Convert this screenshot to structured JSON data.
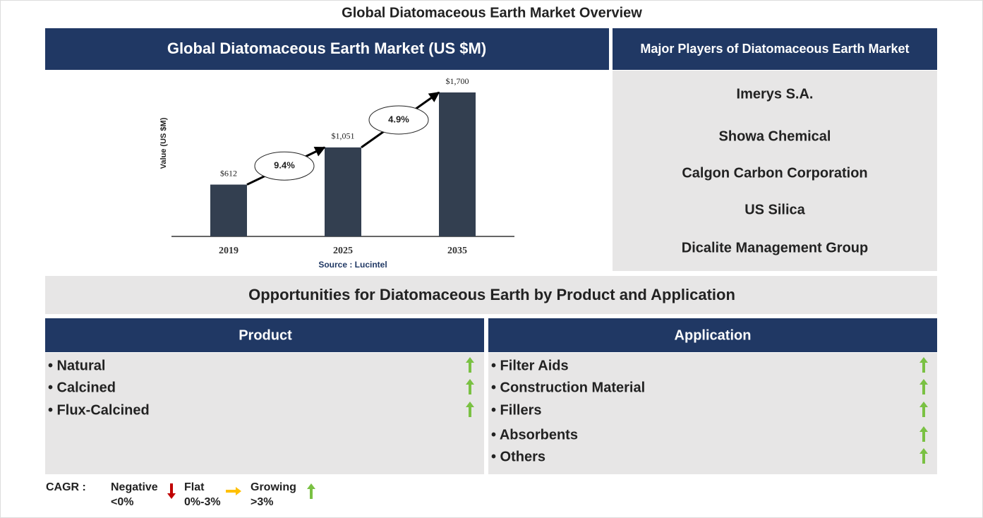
{
  "title": "Global Diatomaceous Earth Market Overview",
  "chart_data": {
    "type": "bar",
    "title": "Global Diatomaceous Earth Market (US $M)",
    "y_label": "Value (US $M)",
    "categories": [
      "2019",
      "2025",
      "2035"
    ],
    "values": [
      612,
      1051,
      1700
    ],
    "value_labels": [
      "$612",
      "$1,051",
      "$1,700"
    ],
    "annotations": [
      "9.4%",
      "4.9%"
    ],
    "source": "Source : Lucintel",
    "color": "#333f50",
    "ylim": [
      0,
      1800
    ]
  },
  "players": {
    "title": "Major Players of Diatomaceous Earth Market",
    "items": [
      "Imerys S.A.",
      "Showa Chemical",
      "Calgon Carbon Corporation",
      "US Silica",
      "Dicalite Management Group"
    ]
  },
  "opportunities": {
    "title": "Opportunities for Diatomaceous Earth by Product and Application",
    "product": {
      "title": "Product",
      "items": [
        {
          "label": "• Natural",
          "trend": "up"
        },
        {
          "label": "• Calcined",
          "trend": "up"
        },
        {
          "label": "• Flux-Calcined",
          "trend": "up"
        }
      ]
    },
    "application": {
      "title": "Application",
      "items": [
        {
          "label": "• Filter Aids",
          "trend": "up"
        },
        {
          "label": "• Construction Material",
          "trend": "up"
        },
        {
          "label": "• Fillers",
          "trend": "up"
        },
        {
          "label": "• Absorbents",
          "trend": "up"
        },
        {
          "label": "• Others",
          "trend": "up"
        }
      ]
    }
  },
  "legend": {
    "label": "CAGR :",
    "items": [
      {
        "name": "Negative",
        "range": "<0%",
        "arrow": "down",
        "color": "#c00000"
      },
      {
        "name": "Flat",
        "range": "0%-3%",
        "arrow": "right",
        "color": "#ffc000"
      },
      {
        "name": "Growing",
        "range": ">3%",
        "arrow": "up",
        "color": "#7ac143"
      }
    ]
  }
}
